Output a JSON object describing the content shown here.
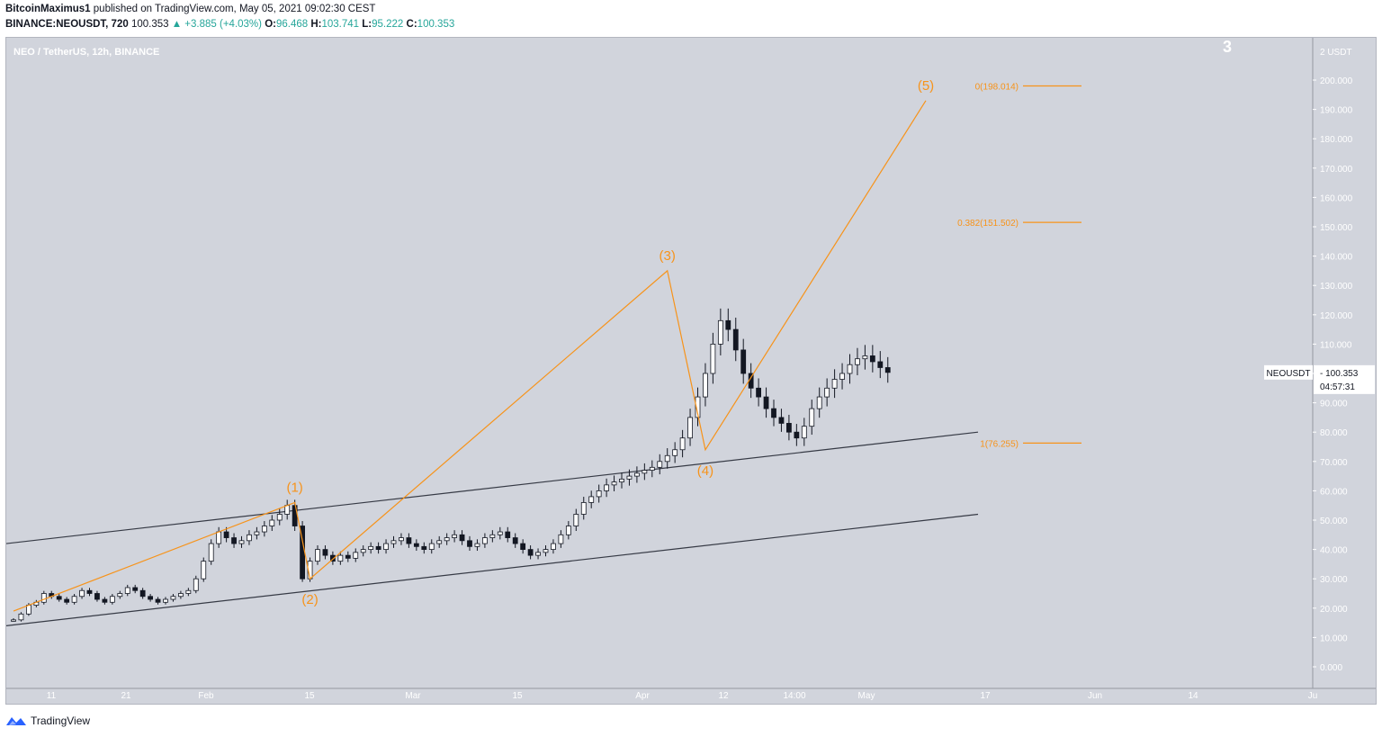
{
  "header": {
    "author": "BitcoinMaximus1",
    "published_text": "published on TradingView.com, May 05, 2021 09:02:30 CEST",
    "symbol_line": "BINANCE:NEOUSDT, 720",
    "last_price": "100.353",
    "change": "▲ +3.885 (+4.03%)",
    "o_label": "O:",
    "o_value": "96.468",
    "h_label": "H:",
    "h_value": "103.741",
    "l_label": "L:",
    "l_value": "95.222",
    "c_label": "C:",
    "c_value": "100.353"
  },
  "chart_title": "NEO / TetherUS, 12h, BINANCE",
  "corner_number": "3",
  "footer": {
    "brand": "TradingView"
  },
  "colors": {
    "background": "#d1d4dc",
    "wave": "#f7931a",
    "channel": "#363a45",
    "candle_up": "#ffffff",
    "candle_down": "#131722"
  },
  "chart_data": {
    "type": "candlestick",
    "unit": "USDT",
    "y_ticks": [
      "0.000",
      "10.000",
      "20.000",
      "30.000",
      "40.000",
      "50.000",
      "60.000",
      "70.000",
      "80.000",
      "90.000",
      "100.000",
      "110.000",
      "120.000",
      "130.000",
      "140.000",
      "150.000",
      "160.000",
      "170.000",
      "180.000",
      "190.000",
      "200.000"
    ],
    "y_top_label": "2 USDT",
    "x_ticks": [
      "11",
      "21",
      "Feb",
      "15",
      "Mar",
      "15",
      "Apr",
      "12",
      "14:00",
      "May",
      "17",
      "Jun",
      "14",
      "Ju"
    ],
    "price_label": {
      "symbol": "NEOUSDT",
      "price": "100.353",
      "countdown": "04:57:31"
    },
    "close_path": [
      16,
      18,
      21,
      22,
      25,
      24,
      23,
      22,
      24,
      26,
      25,
      23,
      22,
      24,
      25,
      27,
      26,
      24,
      23,
      22,
      23,
      24,
      25,
      26,
      30,
      36,
      42,
      46,
      44,
      42,
      43,
      45,
      46,
      48,
      50,
      52,
      55,
      48,
      30,
      36,
      40,
      38,
      36,
      38,
      37,
      39,
      40,
      41,
      40,
      42,
      43,
      44,
      42,
      41,
      40,
      42,
      43,
      44,
      45,
      43,
      41,
      42,
      44,
      45,
      46,
      44,
      42,
      40,
      38,
      39,
      40,
      42,
      45,
      48,
      52,
      56,
      58,
      60,
      62,
      63,
      64,
      65,
      66,
      67,
      68,
      70,
      72,
      74,
      78,
      85,
      92,
      100,
      110,
      118,
      115,
      108,
      100,
      95,
      92,
      88,
      85,
      83,
      80,
      78,
      82,
      88,
      92,
      95,
      98,
      100,
      103,
      105,
      106,
      104,
      102,
      100.353
    ],
    "wave_points": [
      {
        "label": "(1)",
        "date_index": 37,
        "price": 56
      },
      {
        "label": "(2)",
        "date_index": 39,
        "price": 30
      },
      {
        "label": "(3)",
        "date_index": 86,
        "price": 135
      },
      {
        "label": "(4)",
        "date_index": 91,
        "price": 74
      },
      {
        "label": "(5)",
        "date_index": 120,
        "price": 193
      }
    ],
    "fib_levels": [
      {
        "label": "0(198.014)",
        "price": 198.014
      },
      {
        "label": "0.382(151.502)",
        "price": 151.502
      },
      {
        "label": "1(76.255)",
        "price": 76.255
      }
    ],
    "channel_lines": [
      {
        "name": "upper",
        "from_price": 42,
        "to_price": 80
      },
      {
        "name": "lower",
        "from_price": 14,
        "to_price": 52
      }
    ]
  }
}
